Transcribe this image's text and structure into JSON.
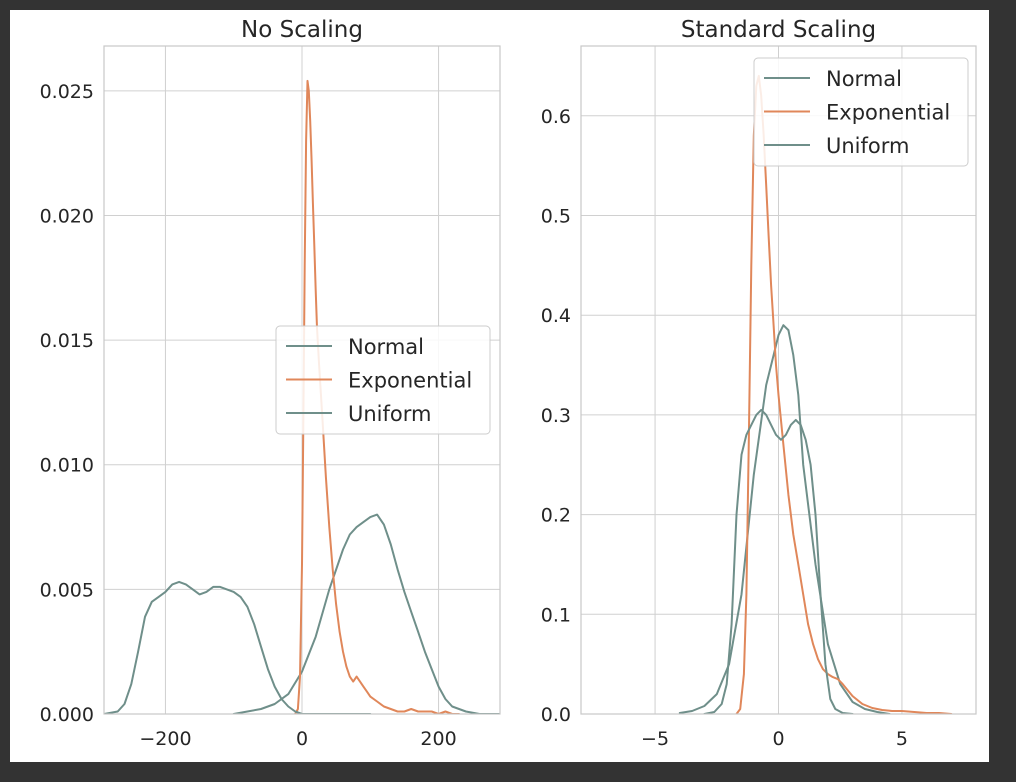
{
  "chart_data": [
    {
      "type": "line",
      "title": "No Scaling",
      "xlabel": "",
      "ylabel": "",
      "xlim": [
        -290,
        290
      ],
      "ylim": [
        0,
        0.0268
      ],
      "xticks": [
        -200,
        0,
        200
      ],
      "xtick_labels": [
        "−200",
        "0",
        "200"
      ],
      "yticks": [
        0,
        0.005,
        0.01,
        0.015,
        0.02,
        0.025
      ],
      "ytick_labels": [
        "0.000",
        "0.005",
        "0.010",
        "0.015",
        "0.020",
        "0.025"
      ],
      "grid": true,
      "legend": {
        "placement": "center-right",
        "entries": [
          {
            "label": "Normal",
            "color": "#6f8f8a"
          },
          {
            "label": "Exponential",
            "color": "#e0875a"
          },
          {
            "label": "Uniform",
            "color": "#6f8f8a"
          }
        ]
      },
      "series": [
        {
          "name": "Normal",
          "color": "#6f8f8a",
          "x": [
            -100,
            -80,
            -60,
            -40,
            -20,
            0,
            20,
            40,
            60,
            70,
            80,
            90,
            100,
            110,
            120,
            130,
            140,
            150,
            160,
            170,
            180,
            190,
            200,
            210,
            220,
            240,
            260,
            290
          ],
          "y": [
            0,
            0.0001,
            0.0002,
            0.0004,
            0.0008,
            0.0017,
            0.0031,
            0.005,
            0.0066,
            0.0072,
            0.0075,
            0.0077,
            0.0079,
            0.008,
            0.0076,
            0.0068,
            0.0058,
            0.0049,
            0.0041,
            0.0033,
            0.0025,
            0.0018,
            0.0011,
            0.0006,
            0.0003,
            0.0001,
            0,
            0
          ]
        },
        {
          "name": "Exponential",
          "color": "#e0875a",
          "x": [
            -10,
            -6,
            -3,
            0,
            2,
            4,
            6,
            8,
            10,
            12,
            14,
            16,
            18,
            20,
            22,
            25,
            30,
            35,
            40,
            45,
            50,
            55,
            60,
            65,
            70,
            75,
            80,
            85,
            90,
            95,
            100,
            110,
            120,
            130,
            140,
            150,
            160,
            170,
            180,
            190,
            200,
            210,
            220,
            230
          ],
          "y": [
            0,
            0.0002,
            0.0015,
            0.006,
            0.012,
            0.018,
            0.023,
            0.0254,
            0.025,
            0.0238,
            0.0222,
            0.0205,
            0.0188,
            0.017,
            0.0155,
            0.014,
            0.0118,
            0.0095,
            0.0075,
            0.0058,
            0.0044,
            0.0033,
            0.0025,
            0.0019,
            0.0015,
            0.0013,
            0.0015,
            0.0013,
            0.0011,
            0.0009,
            0.0007,
            0.0005,
            0.0003,
            0.0002,
            0.0001,
            0.0001,
            0.0002,
            0.0001,
            0.0001,
            0.0001,
            0,
            0.0001,
            0,
            0
          ]
        },
        {
          "name": "Uniform",
          "color": "#6f8f8a",
          "x": [
            -290,
            -270,
            -260,
            -250,
            -240,
            -230,
            -220,
            -210,
            -200,
            -190,
            -180,
            -170,
            -160,
            -150,
            -140,
            -130,
            -120,
            -110,
            -100,
            -90,
            -80,
            -70,
            -60,
            -50,
            -40,
            -30,
            -20,
            -10,
            0,
            20,
            40,
            60,
            80,
            100
          ],
          "y": [
            0,
            0.0001,
            0.0004,
            0.0012,
            0.0025,
            0.0039,
            0.0045,
            0.0047,
            0.0049,
            0.0052,
            0.0053,
            0.0052,
            0.005,
            0.0048,
            0.0049,
            0.0051,
            0.0051,
            0.005,
            0.0049,
            0.0047,
            0.0043,
            0.0036,
            0.0027,
            0.0018,
            0.0011,
            0.0006,
            0.0003,
            0.0001,
            0,
            0,
            0,
            0,
            0,
            0
          ]
        }
      ]
    },
    {
      "type": "line",
      "title": "Standard Scaling",
      "xlabel": "",
      "ylabel": "",
      "xlim": [
        -8,
        8
      ],
      "ylim": [
        0,
        0.67
      ],
      "xticks": [
        -5,
        0,
        5
      ],
      "xtick_labels": [
        "−5",
        "0",
        "5"
      ],
      "yticks": [
        0,
        0.1,
        0.2,
        0.3,
        0.4,
        0.5,
        0.6
      ],
      "ytick_labels": [
        "0.0",
        "0.1",
        "0.2",
        "0.3",
        "0.4",
        "0.5",
        "0.6"
      ],
      "grid": true,
      "legend": {
        "placement": "top-right",
        "entries": [
          {
            "label": "Normal",
            "color": "#6f8f8a"
          },
          {
            "label": "Exponential",
            "color": "#e0875a"
          },
          {
            "label": "Uniform",
            "color": "#6f8f8a"
          }
        ]
      },
      "series": [
        {
          "name": "Normal",
          "color": "#6f8f8a",
          "x": [
            -4,
            -3.5,
            -3,
            -2.5,
            -2,
            -1.5,
            -1,
            -0.5,
            -0.2,
            0,
            0.2,
            0.4,
            0.6,
            0.8,
            1,
            1.5,
            2,
            2.5,
            3,
            3.5,
            4,
            4.5
          ],
          "y": [
            0.001,
            0.003,
            0.008,
            0.02,
            0.05,
            0.12,
            0.24,
            0.33,
            0.36,
            0.38,
            0.39,
            0.385,
            0.36,
            0.32,
            0.25,
            0.15,
            0.07,
            0.03,
            0.012,
            0.005,
            0.002,
            0
          ],
          "note_series_index": 0
        },
        {
          "name": "Exponential",
          "color": "#e0875a",
          "x": [
            -1.7,
            -1.55,
            -1.4,
            -1.3,
            -1.2,
            -1.1,
            -1,
            -0.9,
            -0.8,
            -0.7,
            -0.6,
            -0.5,
            -0.4,
            -0.3,
            -0.2,
            -0.1,
            0,
            0.2,
            0.4,
            0.6,
            0.8,
            1,
            1.2,
            1.4,
            1.6,
            1.8,
            2,
            2.2,
            2.4,
            2.6,
            2.8,
            3,
            3.4,
            3.8,
            4.2,
            4.6,
            5,
            5.5,
            6,
            6.5,
            7
          ],
          "y": [
            0,
            0.005,
            0.04,
            0.12,
            0.28,
            0.45,
            0.58,
            0.63,
            0.64,
            0.62,
            0.58,
            0.53,
            0.48,
            0.43,
            0.39,
            0.35,
            0.32,
            0.27,
            0.22,
            0.18,
            0.15,
            0.12,
            0.09,
            0.07,
            0.055,
            0.045,
            0.04,
            0.037,
            0.035,
            0.03,
            0.024,
            0.018,
            0.01,
            0.006,
            0.004,
            0.003,
            0.003,
            0.002,
            0.001,
            0.001,
            0
          ]
        },
        {
          "name": "Uniform",
          "color": "#6f8f8a",
          "x": [
            -3,
            -2.6,
            -2.3,
            -2.1,
            -1.9,
            -1.7,
            -1.5,
            -1.3,
            -1.1,
            -0.9,
            -0.7,
            -0.5,
            -0.3,
            -0.1,
            0.1,
            0.3,
            0.5,
            0.7,
            0.9,
            1.1,
            1.3,
            1.5,
            1.7,
            1.9,
            2.1,
            2.3,
            2.6,
            3
          ],
          "y": [
            0,
            0.002,
            0.01,
            0.03,
            0.09,
            0.2,
            0.26,
            0.28,
            0.29,
            0.3,
            0.305,
            0.3,
            0.29,
            0.28,
            0.275,
            0.28,
            0.29,
            0.295,
            0.29,
            0.275,
            0.25,
            0.2,
            0.12,
            0.05,
            0.015,
            0.005,
            0.001,
            0
          ]
        }
      ]
    }
  ]
}
